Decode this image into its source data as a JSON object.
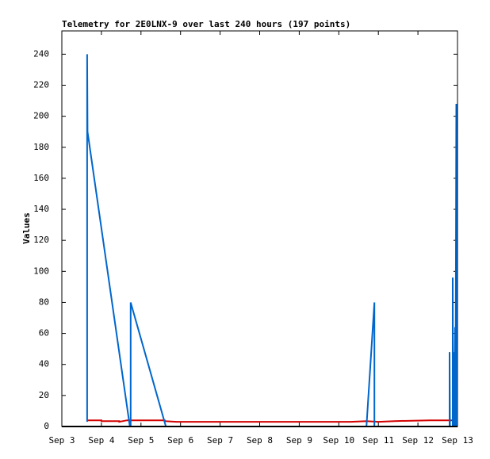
{
  "chart_data": {
    "type": "line",
    "title": "Telemetry for 2E0LNX-9 over last 240 hours (197 points)",
    "y_label": "Values",
    "xlim": [
      3,
      13
    ],
    "xticks": [
      {
        "value": 3,
        "label": "Sep 3"
      },
      {
        "value": 4,
        "label": "Sep 4"
      },
      {
        "value": 5,
        "label": "Sep 5"
      },
      {
        "value": 6,
        "label": "Sep 6"
      },
      {
        "value": 7,
        "label": "Sep 7"
      },
      {
        "value": 8,
        "label": "Sep 8"
      },
      {
        "value": 9,
        "label": "Sep 9"
      },
      {
        "value": 10,
        "label": "Sep 10"
      },
      {
        "value": 11,
        "label": "Sep 11"
      },
      {
        "value": 12,
        "label": "Sep 12"
      },
      {
        "value": 13,
        "label": "Sep 13"
      }
    ],
    "ylim": [
      0,
      255
    ],
    "yticks": [
      0,
      20,
      40,
      60,
      80,
      100,
      120,
      140,
      160,
      180,
      200,
      220,
      240
    ],
    "series": [
      {
        "color": "#d40000",
        "x": [
          3.64,
          4.0,
          4.0,
          4.45,
          4.45,
          4.65,
          5.6,
          5.6,
          5.9,
          8.5,
          10.3,
          10.7,
          11.0,
          11.4,
          12.3,
          12.9
        ],
        "values": [
          4,
          4,
          3.5,
          3.5,
          3,
          4,
          4,
          3.5,
          3,
          3,
          3,
          3.5,
          3,
          3.5,
          4,
          4
        ]
      },
      {
        "color": "#0066cc",
        "x": [
          3.64,
          3.64,
          3.65,
          4.72,
          4.74,
          4.74,
          5.63,
          5.63,
          10.7,
          10.9,
          10.9,
          10.9,
          12.8,
          12.8,
          12.81,
          12.88,
          12.88,
          12.89,
          12.91,
          12.92,
          12.94,
          12.95,
          12.97,
          12.98
        ],
        "values": [
          3,
          240,
          190,
          0,
          0,
          80,
          0,
          null,
          0,
          80,
          0,
          null,
          0,
          48,
          0,
          0,
          96,
          0,
          48,
          0,
          64,
          0,
          208,
          0
        ]
      }
    ]
  }
}
